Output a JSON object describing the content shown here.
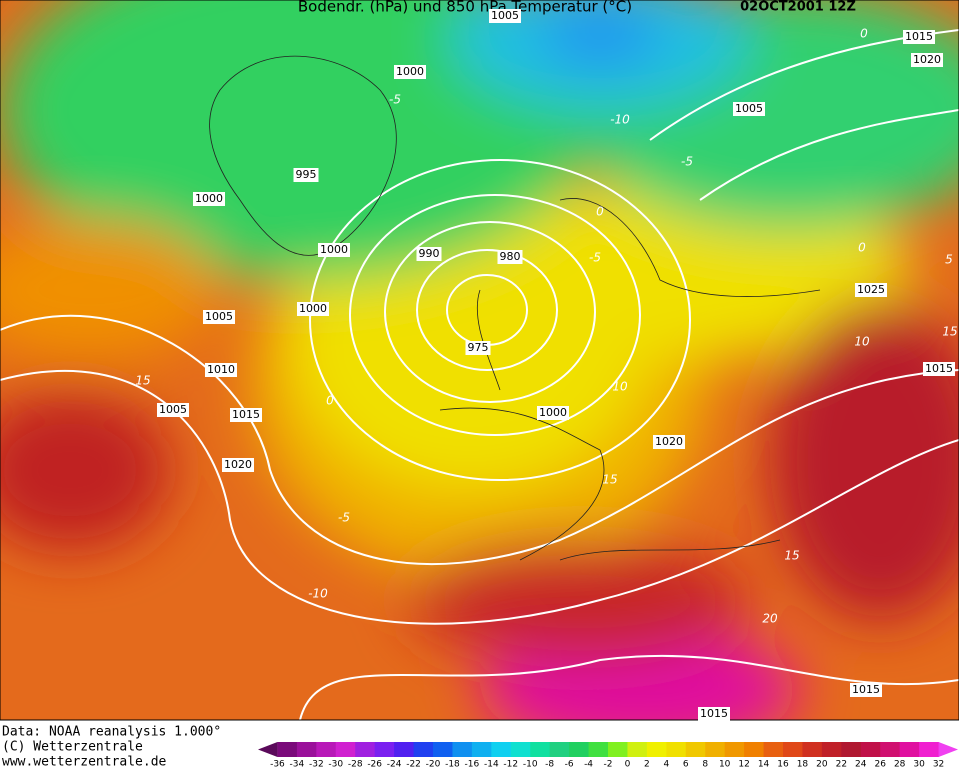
{
  "header": {
    "title": "Bodendr. (hPa) und 850 hPa Temperatur (°C)",
    "date": "02OCT2001 12Z"
  },
  "isobar_labels": [
    "1005",
    "1000",
    "995",
    "1000",
    "1000",
    "990",
    "980",
    "1000",
    "1005",
    "975",
    "1010",
    "1005",
    "1015",
    "1000",
    "1020",
    "1020",
    "1005",
    "1015",
    "1020",
    "1025",
    "1015",
    "1015",
    "1015"
  ],
  "temperature_labels": [
    "-5",
    "-10",
    "-5",
    "0",
    "-5",
    "0",
    "5",
    "15",
    "0",
    "10",
    "10",
    "15",
    "-5",
    "-10",
    "15",
    "15",
    "20",
    "0"
  ],
  "footer": [
    "Data: NOAA reanalysis 1.000°",
    "(C) Wetterzentrale",
    "www.wetterzentrale.de"
  ],
  "colorbar": {
    "labels": [
      -36,
      -34,
      -32,
      -30,
      -28,
      -26,
      -24,
      -22,
      -20,
      -18,
      -16,
      -14,
      -12,
      -10,
      -8,
      -6,
      -4,
      -2,
      0,
      2,
      4,
      6,
      8,
      10,
      12,
      14,
      16,
      18,
      20,
      22,
      24,
      26,
      28,
      30,
      32
    ],
    "colors": [
      "#5a0a5a",
      "#7a0a7a",
      "#9a109a",
      "#b818b8",
      "#d020d0",
      "#a020e0",
      "#7a20f0",
      "#5020f0",
      "#2040f0",
      "#1060f0",
      "#1090f0",
      "#10b0f0",
      "#10d0f0",
      "#10e0d0",
      "#10e0a0",
      "#20d080",
      "#20d060",
      "#40e040",
      "#80f020",
      "#d0f010",
      "#f0f000",
      "#f0e000",
      "#f0c800",
      "#f0b000",
      "#f09800",
      "#f08000",
      "#e86010",
      "#e04818",
      "#d03020",
      "#c02028",
      "#b01830",
      "#c01048",
      "#d01070",
      "#e010a0",
      "#f020d0",
      "#f040f0"
    ]
  }
}
